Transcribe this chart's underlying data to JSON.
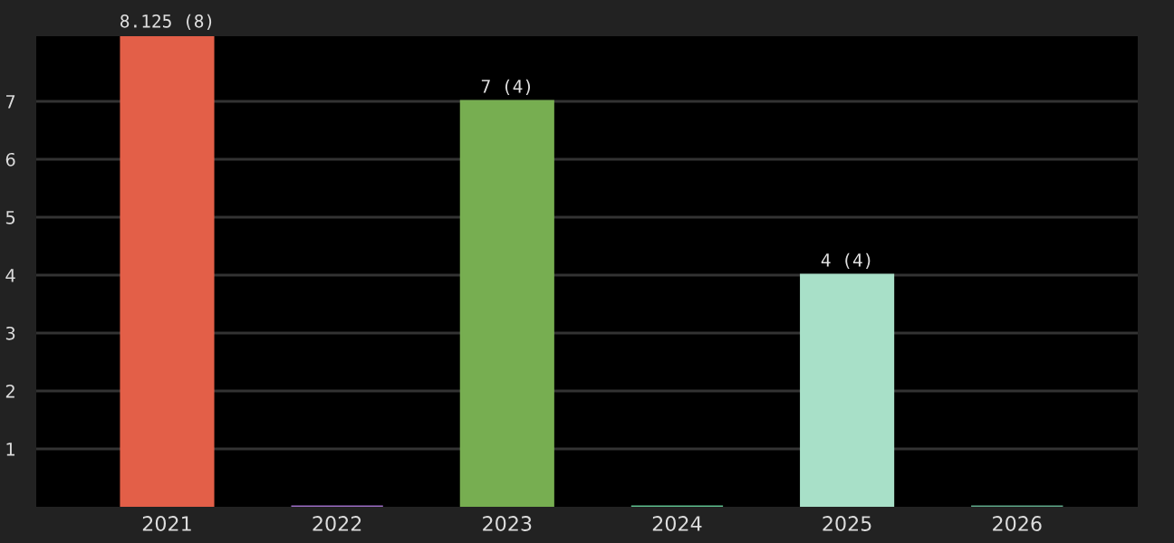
{
  "chart_data": {
    "type": "bar",
    "categories": [
      "2021",
      "2022",
      "2023",
      "2024",
      "2025",
      "2026"
    ],
    "values": [
      8.125,
      0,
      7,
      0,
      4,
      0
    ],
    "colors": [
      "#e35f48",
      "#9b6cc4",
      "#77ae51",
      "#5fbf8f",
      "#a8e0c8",
      "#5fa88a"
    ],
    "value_labels": [
      "8.125 (8)",
      null,
      "7 (4)",
      null,
      "4 (4)",
      null
    ],
    "ylim": [
      0,
      8.125
    ],
    "yticks": [
      1,
      2,
      3,
      4,
      5,
      6,
      7
    ],
    "grid": "y",
    "legend": false
  }
}
